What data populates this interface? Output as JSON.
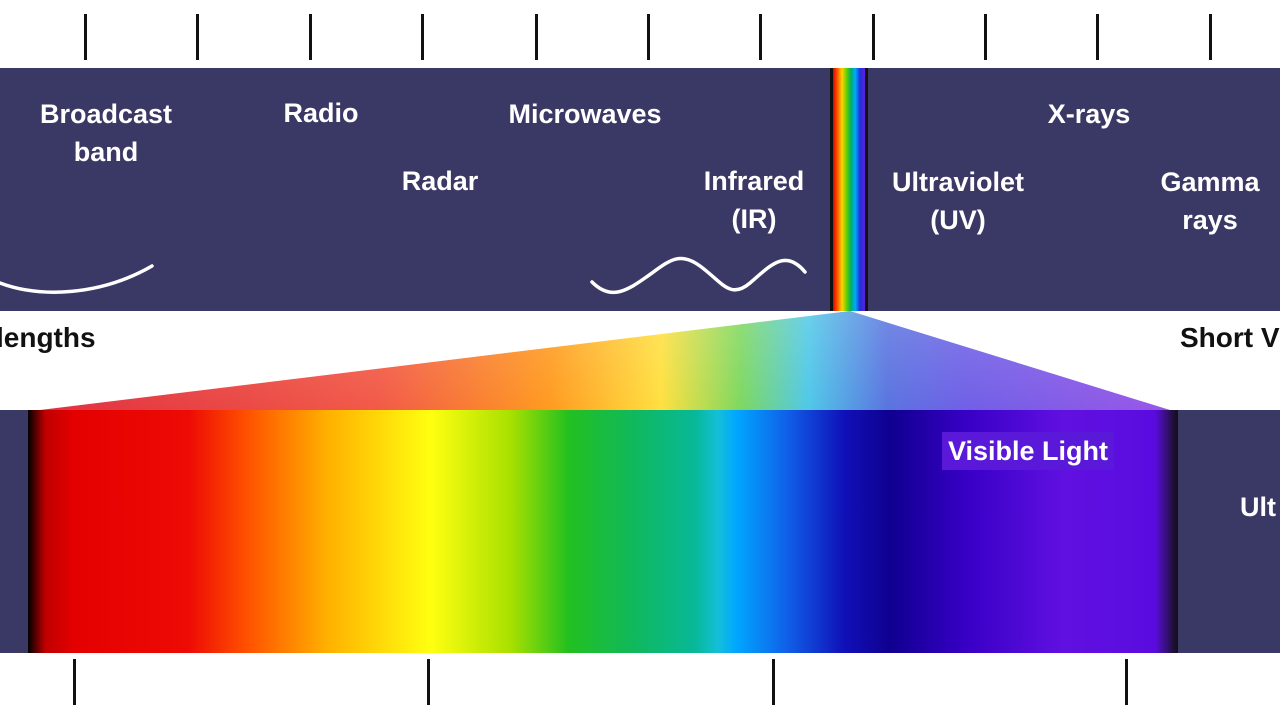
{
  "top_labels": {
    "broadcast": "Broadcast\nband",
    "radio": "Radio",
    "microwaves": "Microwaves",
    "radar": "Radar",
    "infrared": "Infrared\n(IR)",
    "xrays": "X-rays",
    "ultraviolet": "Ultraviolet\n(UV)",
    "gamma": "Gamma\nrays"
  },
  "side_labels": {
    "long": "lengths",
    "short": "Short V"
  },
  "visible": {
    "label": "Visible Light",
    "right_partial": "Ult"
  },
  "colors": {
    "band": "#3a3864",
    "tick": "#111111",
    "wave": "#ffffff"
  }
}
